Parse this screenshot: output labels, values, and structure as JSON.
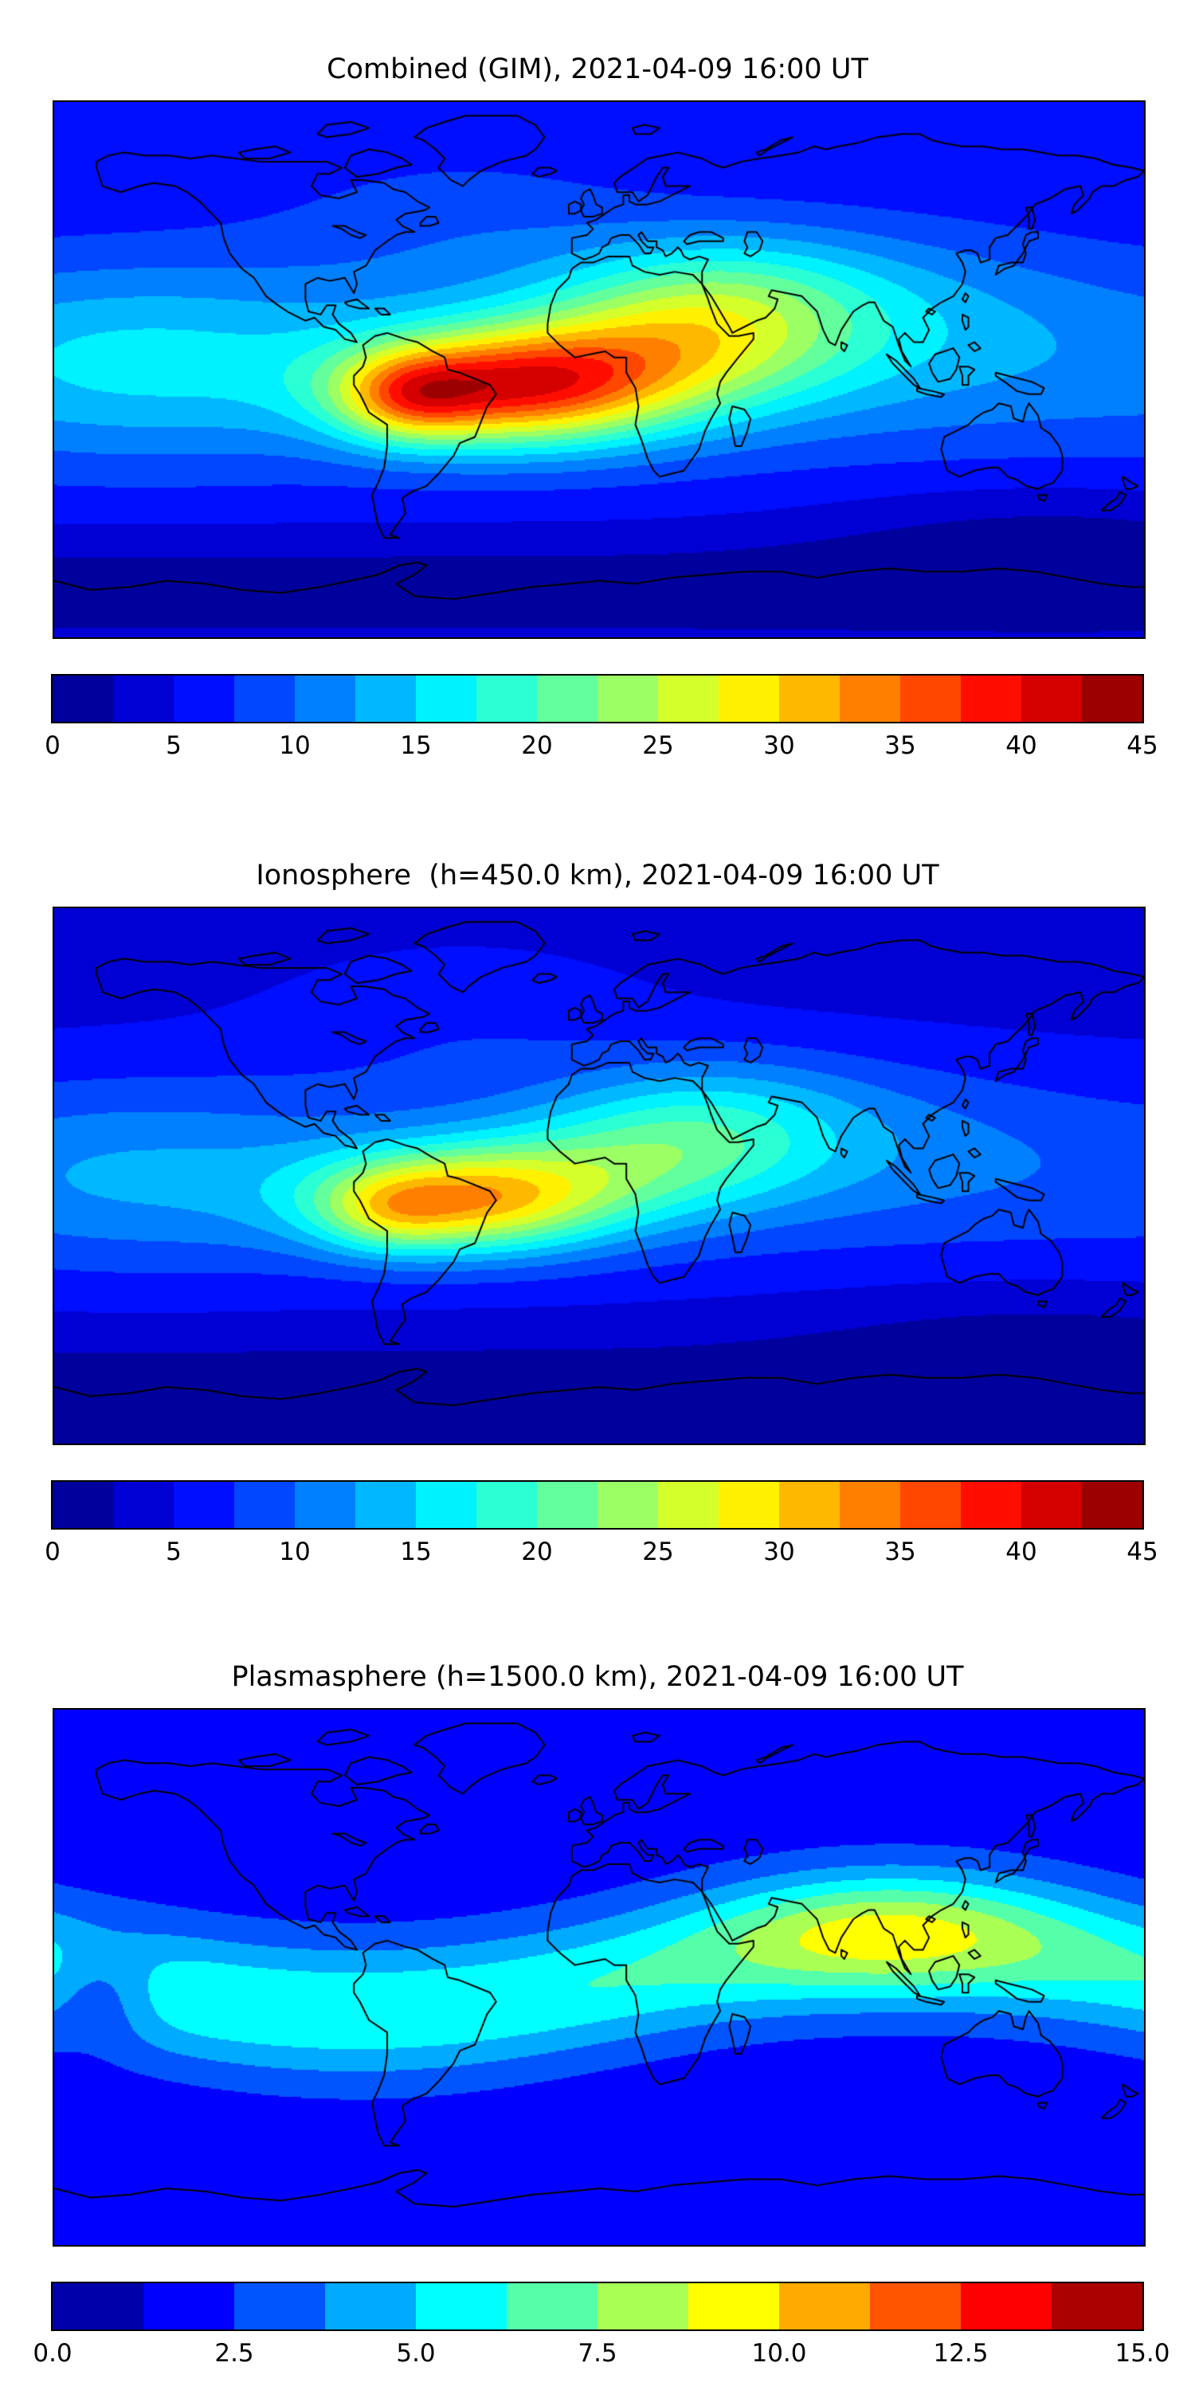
{
  "figure": {
    "background": "#ffffff",
    "coastline_color": "#000000"
  },
  "chart_data": [
    {
      "type": "filled-contour-map",
      "title": "Combined (GIM), 2021-04-09 16:00 UT",
      "layer": "Combined (GIM)",
      "timestamp_ut": "2021-04-09 16:00",
      "projection": "equirectangular",
      "lon_range": [
        -180,
        180
      ],
      "lat_range": [
        -87.5,
        87.5
      ],
      "colormap": "jet",
      "vmin": 0,
      "vmax": 45,
      "level_step": 2.5,
      "colorbar_ticks": [
        "0",
        "5",
        "10",
        "15",
        "20",
        "25",
        "30",
        "35",
        "40",
        "45"
      ],
      "legend_position": "bottom",
      "grid": false,
      "field": {
        "base": 5,
        "blobs": [
          {
            "lon": -30,
            "lat": -6,
            "amp": 26,
            "slon": 36,
            "slat": 13
          },
          {
            "lon": -63,
            "lat": -9,
            "amp": 12,
            "slon": 16,
            "slat": 10
          },
          {
            "lon": 22,
            "lat": 6,
            "amp": 12,
            "slon": 38,
            "slat": 15
          },
          {
            "lon": 40,
            "lat": 25,
            "amp": 8,
            "slon": 36,
            "slat": 15
          },
          {
            "lon": -150,
            "lat": 3,
            "amp": 5,
            "slon": 50,
            "slat": 22
          },
          {
            "lon": 90,
            "lat": 20,
            "amp": 4,
            "slon": 50,
            "slat": 20
          },
          {
            "lon": -45,
            "lat": 50,
            "amp": 3,
            "slon": 45,
            "slat": 18
          },
          {
            "lon": 0,
            "lat": 2,
            "amp": 6,
            "slon": 9999,
            "slat": 26
          },
          {
            "lon": 0,
            "lat": -72,
            "amp": -4,
            "slon": 9999,
            "slat": 13
          },
          {
            "lon": 148,
            "lat": -54,
            "amp": -3,
            "slon": 55,
            "slat": 14
          }
        ]
      }
    },
    {
      "type": "filled-contour-map",
      "title": "Ionosphere  (h=450.0 km), 2021-04-09 16:00 UT",
      "layer": "Ionosphere (h=450.0 km)",
      "timestamp_ut": "2021-04-09 16:00",
      "projection": "equirectangular",
      "lon_range": [
        -180,
        180
      ],
      "lat_range": [
        -87.5,
        87.5
      ],
      "colormap": "jet",
      "vmin": 0,
      "vmax": 45,
      "level_step": 2.5,
      "colorbar_ticks": [
        "0",
        "5",
        "10",
        "15",
        "20",
        "25",
        "30",
        "35",
        "40",
        "45"
      ],
      "legend_position": "bottom",
      "grid": false,
      "field": {
        "base": 4,
        "blobs": [
          {
            "lon": -45,
            "lat": -8,
            "amp": 22,
            "slon": 34,
            "slat": 12
          },
          {
            "lon": -70,
            "lat": -12,
            "amp": 6,
            "slon": 15,
            "slat": 9
          },
          {
            "lon": 15,
            "lat": 5,
            "amp": 9,
            "slon": 36,
            "slat": 14
          },
          {
            "lon": 38,
            "lat": 22,
            "amp": 5,
            "slon": 34,
            "slat": 14
          },
          {
            "lon": -150,
            "lat": 0,
            "amp": 4,
            "slon": 50,
            "slat": 22
          },
          {
            "lon": 80,
            "lat": 15,
            "amp": 3,
            "slon": 50,
            "slat": 18
          },
          {
            "lon": -45,
            "lat": 50,
            "amp": 2.5,
            "slon": 45,
            "slat": 18
          },
          {
            "lon": 0,
            "lat": 0,
            "amp": 5,
            "slon": 9999,
            "slat": 24
          },
          {
            "lon": 0,
            "lat": -72,
            "amp": -3.5,
            "slon": 9999,
            "slat": 13
          },
          {
            "lon": 145,
            "lat": -55,
            "amp": -2.5,
            "slon": 55,
            "slat": 14
          }
        ]
      }
    },
    {
      "type": "filled-contour-map",
      "title": "Plasmasphere (h=1500.0 km), 2021-04-09 16:00 UT",
      "layer": "Plasmasphere (h=1500.0 km)",
      "timestamp_ut": "2021-04-09 16:00",
      "projection": "equirectangular",
      "lon_range": [
        -180,
        180
      ],
      "lat_range": [
        -87.5,
        87.5
      ],
      "colormap": "jet",
      "vmin": 0,
      "vmax": 15,
      "level_step": 1.25,
      "colorbar_ticks": [
        "0.0",
        "2.5",
        "5.0",
        "7.5",
        "10.0",
        "12.5",
        "15.0"
      ],
      "legend_position": "bottom",
      "grid": false,
      "field": {
        "base": 1.6,
        "band": {
          "amp": 4.6,
          "sigma": 16,
          "tilt_amp": 11,
          "tilt_phase_deg": 10
        },
        "blobs": [
          {
            "lon": 95,
            "lat": 15,
            "amp": 3.6,
            "slon": 38,
            "slat": 13
          },
          {
            "lon": -165,
            "lat": -5,
            "amp": -2.6,
            "slon": 13,
            "slat": 11
          }
        ]
      }
    }
  ]
}
